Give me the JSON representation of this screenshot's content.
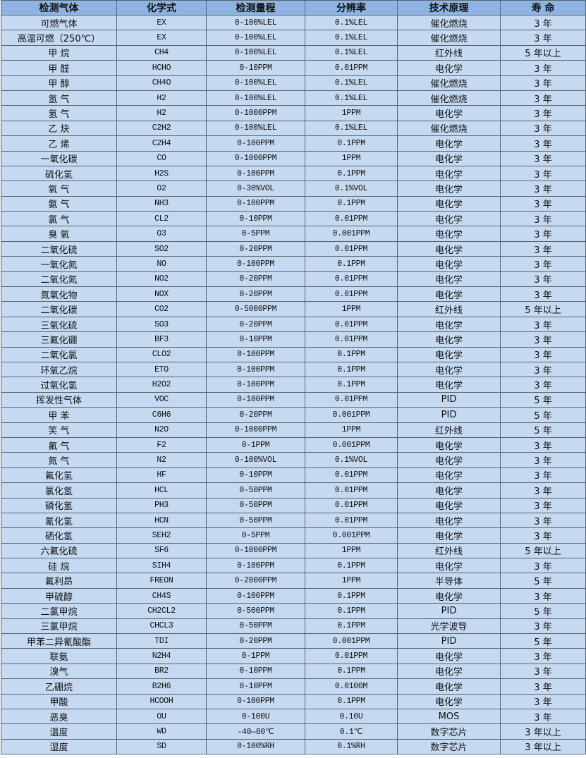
{
  "table": {
    "headers": [
      "检测气体",
      "化学式",
      "检测量程",
      "分辨率",
      "技术原理",
      "寿 命"
    ],
    "rows": [
      [
        "可燃气体",
        "EX",
        "0-100%LEL",
        "0.1%LEL",
        "催化燃烧",
        "3 年"
      ],
      [
        "高温可燃（250℃）",
        "EX",
        "0-100%LEL",
        "0.1%LEL",
        "催化燃烧",
        "3 年"
      ],
      [
        "甲 烷",
        "CH4",
        "0-100%LEL",
        "0.1%LEL",
        "红外线",
        "5 年以上"
      ],
      [
        "甲 醛",
        "HCHO",
        "0-10PPM",
        "0.01PPM",
        "电化学",
        "3 年"
      ],
      [
        "甲 醇",
        "CH4O",
        "0-100%LEL",
        "0.1%LEL",
        "催化燃烧",
        "3 年"
      ],
      [
        "氢 气",
        "H2",
        "0-100%LEL",
        "0.1%LEL",
        "催化燃烧",
        "3 年"
      ],
      [
        "氢 气",
        "H2",
        "0-1000PPM",
        "1PPM",
        "电化学",
        "3 年"
      ],
      [
        "乙 炔",
        "C2H2",
        "0-100%LEL",
        "0.1%LEL",
        "催化燃烧",
        "3 年"
      ],
      [
        "乙 烯",
        "C2H4",
        "0-100PPM",
        "0.1PPM",
        "电化学",
        "3 年"
      ],
      [
        "一氧化碳",
        "CO",
        "0-1000PPM",
        "1PPM",
        "电化学",
        "3 年"
      ],
      [
        "硫化氢",
        "H2S",
        "0-100PPM",
        "0.1PPM",
        "电化学",
        "3 年"
      ],
      [
        "氧 气",
        "O2",
        "0-30%VOL",
        "0.1%VOL",
        "电化学",
        "3 年"
      ],
      [
        "氨 气",
        "NH3",
        "0-100PPM",
        "0.1PPM",
        "电化学",
        "3 年"
      ],
      [
        "氯 气",
        "CL2",
        "0-10PPM",
        "0.01PPM",
        "电化学",
        "3 年"
      ],
      [
        "臭 氧",
        "O3",
        "0-5PPM",
        "0.001PPM",
        "电化学",
        "3 年"
      ],
      [
        "二氧化硫",
        "SO2",
        "0-20PPM",
        "0.01PPM",
        "电化学",
        "3 年"
      ],
      [
        "一氧化氮",
        "NO",
        "0-100PPM",
        "0.1PPM",
        "电化学",
        "3 年"
      ],
      [
        "二氧化氮",
        "NO2",
        "0-20PPM",
        "0.01PPM",
        "电化学",
        "3 年"
      ],
      [
        "氮氧化物",
        "NOX",
        "0-20PPM",
        "0.01PPM",
        "电化学",
        "3 年"
      ],
      [
        "二氧化碳",
        "CO2",
        "0-5000PPM",
        "1PPM",
        "红外线",
        "5 年以上"
      ],
      [
        "三氧化硫",
        "SO3",
        "0-20PPM",
        "0.01PPM",
        "电化学",
        "3 年"
      ],
      [
        "三氟化硼",
        "BF3",
        "0-10PPM",
        "0.01PPM",
        "电化学",
        "3 年"
      ],
      [
        "二氧化氯",
        "CLO2",
        "0-100PPM",
        "0.1PPM",
        "电化学",
        "3 年"
      ],
      [
        "环氧乙烷",
        "ETO",
        "0-100PPM",
        "0.1PPM",
        "电化学",
        "3 年"
      ],
      [
        "过氧化氢",
        "H2O2",
        "0-100PPM",
        "0.1PPM",
        "电化学",
        "3 年"
      ],
      [
        "挥发性气体",
        "VOC",
        "0-100PPM",
        "0.01PPM",
        "PID",
        "5 年"
      ],
      [
        "甲 苯",
        "C6H6",
        "0-20PPM",
        "0.001PPM",
        "PID",
        "5 年"
      ],
      [
        "笑 气",
        "N2O",
        "0-1000PPM",
        "1PPM",
        "红外线",
        "5 年"
      ],
      [
        "氟 气",
        "F2",
        "0-1PPM",
        "0.001PPM",
        "电化学",
        "3 年"
      ],
      [
        "氮 气",
        "N2",
        "0-100%VOL",
        "0.1%VOL",
        "电化学",
        "3 年"
      ],
      [
        "氟化氢",
        "HF",
        "0-10PPM",
        "0.01PPM",
        "电化学",
        "3 年"
      ],
      [
        "氯化氢",
        "HCL",
        "0-50PPM",
        "0.01PPM",
        "电化学",
        "3 年"
      ],
      [
        "磷化氢",
        "PH3",
        "0-50PPM",
        "0.01PPM",
        "电化学",
        "3 年"
      ],
      [
        "氰化氢",
        "HCN",
        "0-50PPM",
        "0.01PPM",
        "电化学",
        "3 年"
      ],
      [
        "硒化氢",
        "SEH2",
        "0-5PPM",
        "0.001PPM",
        "电化学",
        "3 年"
      ],
      [
        "六氟化硫",
        "SF6",
        "0-1000PPM",
        "1PPM",
        "红外线",
        "5 年以上"
      ],
      [
        "硅 烷",
        "SIH4",
        "0-100PPM",
        "0.1PPM",
        "电化学",
        "3 年"
      ],
      [
        "氟利昂",
        "FREON",
        "0-2000PPM",
        "1PPM",
        "半导体",
        "5 年"
      ],
      [
        "甲硫醇",
        "CH4S",
        "0-100PPM",
        "0.1PPM",
        "电化学",
        "3 年"
      ],
      [
        "二氯甲烷",
        "CH2CL2",
        "0-500PPM",
        "0.1PPM",
        "PID",
        "5 年"
      ],
      [
        "三氯甲烷",
        "CHCL3",
        "0-50PPM",
        "0.1PPM",
        "光学波导",
        "3 年"
      ],
      [
        "甲苯二异氰酸酯",
        "TDI",
        "0-20PPM",
        "0.001PPM",
        "PID",
        "5 年"
      ],
      [
        "联氨",
        "N2H4",
        "0-1PPM",
        "0.01PPM",
        "电化学",
        "3 年"
      ],
      [
        "溴气",
        "BR2",
        "0-10PPM",
        "0.1PPM",
        "电化学",
        "3 年"
      ],
      [
        "乙硼烷",
        "B2H6",
        "0-10PPM",
        "0.0100M",
        "电化学",
        "3 年"
      ],
      [
        "甲酸",
        "HCOOH",
        "0-100PPM",
        "0.1PPM",
        "电化学",
        "3 年"
      ],
      [
        "恶臭",
        "OU",
        "0-100U",
        "0.10U",
        "MOS",
        "3 年"
      ],
      [
        "温度",
        "WD",
        "-40—80℃",
        "0.1℃",
        "数字芯片",
        "3 年以上"
      ],
      [
        "湿度",
        "SD",
        "0-100%RH",
        "0.1%RH",
        "数字芯片",
        "3 年以上"
      ]
    ]
  }
}
